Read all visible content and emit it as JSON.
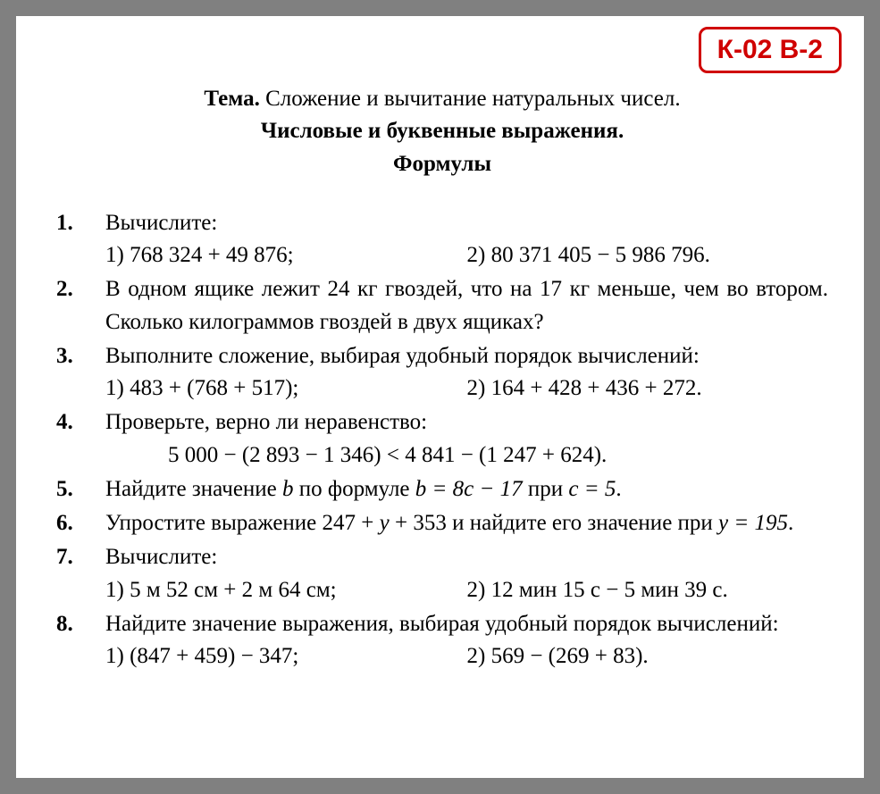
{
  "badge": "К-02 В-2",
  "topic": {
    "label": "Тема.",
    "line1": " Сложение и вычитание натуральных чисел.",
    "line2": "Числовые и буквенные выражения.",
    "line3": "Формулы"
  },
  "problems": {
    "p1": {
      "num": "1.",
      "text": "Вычислите:",
      "sub1": "1) 768 324 + 49 876;",
      "sub2": "2) 80 371 405 − 5 986 796."
    },
    "p2": {
      "num": "2.",
      "text": "В одном ящике лежит 24 кг гвоздей, что на 17 кг меньше, чем во втором. Сколько килограммов гвоздей в двух ящиках?"
    },
    "p3": {
      "num": "3.",
      "text": "Выполните сложение, выбирая удобный порядок вычислений:",
      "sub1": "1) 483 + (768 + 517);",
      "sub2": "2) 164 + 428 + 436 + 272."
    },
    "p4": {
      "num": "4.",
      "text": "Проверьте, верно ли неравенство:",
      "formula": "5 000 − (2 893 − 1 346) < 4 841 − (1 247 + 624)."
    },
    "p5": {
      "num": "5.",
      "text_a": "Найдите значение ",
      "var_b": "b",
      "text_b": " по формуле ",
      "formula": "b = 8c − 17",
      "text_c": " при ",
      "cond": "c = 5",
      "text_d": "."
    },
    "p6": {
      "num": "6.",
      "text_a": "Упростите выражение 247 + ",
      "var_y": "y",
      "text_b": " + 353 и найдите его значение при ",
      "cond": "y = 195",
      "text_c": "."
    },
    "p7": {
      "num": "7.",
      "text": "Вычислите:",
      "sub1": "1) 5 м 52 см + 2 м 64 см;",
      "sub2": "2) 12 мин 15 с − 5 мин 39 с."
    },
    "p8": {
      "num": "8.",
      "text": "Найдите значение выражения, выбирая удобный порядок вычислений:",
      "sub1": "1) (847 + 459) − 347;",
      "sub2": "2) 569 − (269 + 83)."
    }
  },
  "style": {
    "frame_border_color": "#808080",
    "frame_border_width": 18,
    "badge_border_color": "#d00000",
    "badge_text_color": "#d00000",
    "body_font": "Georgia, Times New Roman, serif",
    "body_fontsize": 25,
    "background": "#ffffff"
  }
}
